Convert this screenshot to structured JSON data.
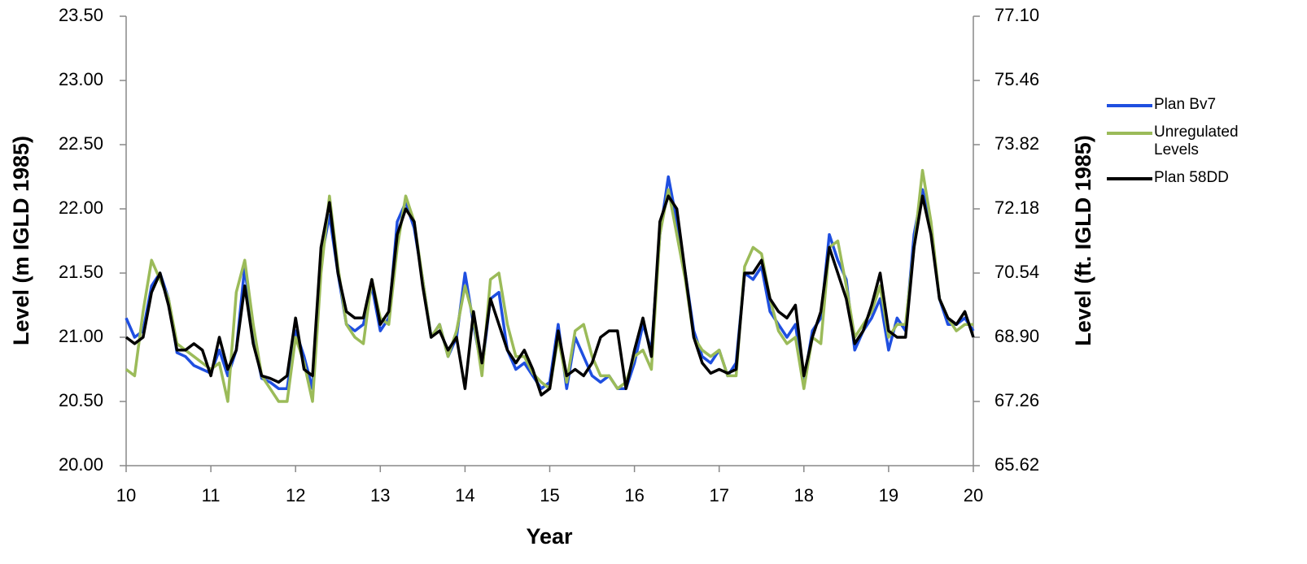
{
  "chart_data": {
    "type": "line",
    "xlabel": "Year",
    "ylabel": "Level (m IGLD 1985)",
    "y2label": "Level (ft. IGLD 1985)",
    "x": [
      10,
      10.1,
      10.2,
      10.3,
      10.4,
      10.5,
      10.6,
      10.7,
      10.8,
      10.9,
      11,
      11.1,
      11.2,
      11.3,
      11.4,
      11.5,
      11.6,
      11.7,
      11.8,
      11.9,
      12,
      12.1,
      12.2,
      12.3,
      12.4,
      12.5,
      12.6,
      12.7,
      12.8,
      12.9,
      13,
      13.1,
      13.2,
      13.3,
      13.4,
      13.5,
      13.6,
      13.7,
      13.8,
      13.9,
      14,
      14.1,
      14.2,
      14.3,
      14.4,
      14.5,
      14.6,
      14.7,
      14.8,
      14.9,
      15,
      15.1,
      15.2,
      15.3,
      15.4,
      15.5,
      15.6,
      15.7,
      15.8,
      15.9,
      16,
      16.1,
      16.2,
      16.3,
      16.4,
      16.5,
      16.6,
      16.7,
      16.8,
      16.9,
      17,
      17.1,
      17.2,
      17.3,
      17.4,
      17.5,
      17.6,
      17.7,
      17.8,
      17.9,
      18,
      18.1,
      18.2,
      18.3,
      18.4,
      18.5,
      18.6,
      18.7,
      18.8,
      18.9,
      19,
      19.1,
      19.2,
      19.3,
      19.4,
      19.5,
      19.6,
      19.7,
      19.8,
      19.9,
      20
    ],
    "series": [
      {
        "name": "Plan Bv7",
        "color": "#1f4fe0",
        "values": [
          21.15,
          21.0,
          21.05,
          21.4,
          21.5,
          21.3,
          20.88,
          20.85,
          20.78,
          20.75,
          20.72,
          20.9,
          20.7,
          20.9,
          21.55,
          21.0,
          20.68,
          20.65,
          20.6,
          20.6,
          21.05,
          20.85,
          20.6,
          21.6,
          21.95,
          21.5,
          21.1,
          21.05,
          21.1,
          21.4,
          21.05,
          21.15,
          21.9,
          22.05,
          21.85,
          21.45,
          21.0,
          21.1,
          20.85,
          21.0,
          21.5,
          21.1,
          20.75,
          21.3,
          21.35,
          20.9,
          20.75,
          20.8,
          20.7,
          20.6,
          20.65,
          21.1,
          20.6,
          21.0,
          20.85,
          20.7,
          20.65,
          20.7,
          20.6,
          20.6,
          20.8,
          21.1,
          20.9,
          21.8,
          22.25,
          21.9,
          21.5,
          21.05,
          20.85,
          20.8,
          20.9,
          20.7,
          20.8,
          21.5,
          21.45,
          21.55,
          21.2,
          21.1,
          21.0,
          21.1,
          20.65,
          21.05,
          21.15,
          21.8,
          21.6,
          21.45,
          20.9,
          21.05,
          21.15,
          21.3,
          20.9,
          21.15,
          21.05,
          21.8,
          22.15,
          21.85,
          21.3,
          21.1,
          21.1,
          21.15,
          21.05
        ]
      },
      {
        "name": "Unregulated Levels",
        "color": "#9bbb59",
        "values": [
          20.75,
          20.7,
          21.2,
          21.6,
          21.45,
          21.3,
          20.95,
          20.9,
          20.85,
          20.8,
          20.75,
          20.8,
          20.5,
          21.35,
          21.6,
          21.1,
          20.7,
          20.6,
          20.5,
          20.5,
          21.0,
          20.8,
          20.5,
          21.5,
          22.1,
          21.55,
          21.1,
          21.0,
          20.95,
          21.45,
          21.15,
          21.1,
          21.7,
          22.1,
          21.9,
          21.45,
          21.0,
          21.1,
          20.85,
          21.05,
          21.4,
          21.15,
          20.7,
          21.45,
          21.5,
          21.1,
          20.85,
          20.85,
          20.72,
          20.65,
          20.6,
          21.0,
          20.65,
          21.05,
          21.1,
          20.85,
          20.7,
          20.7,
          20.6,
          20.65,
          20.85,
          20.9,
          20.75,
          21.8,
          22.15,
          21.8,
          21.45,
          21.0,
          20.9,
          20.85,
          20.9,
          20.7,
          20.7,
          21.55,
          21.7,
          21.65,
          21.3,
          21.05,
          20.95,
          21.0,
          20.6,
          21.0,
          20.95,
          21.7,
          21.75,
          21.4,
          21.0,
          21.1,
          21.2,
          21.4,
          21.0,
          21.1,
          21.1,
          21.7,
          22.3,
          21.9,
          21.3,
          21.15,
          21.05,
          21.1,
          21.1
        ]
      },
      {
        "name": "Plan 58DD",
        "color": "#000000",
        "values": [
          21.0,
          20.95,
          21.0,
          21.35,
          21.5,
          21.25,
          20.9,
          20.9,
          20.95,
          20.9,
          20.7,
          21.0,
          20.75,
          20.9,
          21.4,
          20.95,
          20.7,
          20.68,
          20.65,
          20.7,
          21.15,
          20.75,
          20.7,
          21.7,
          22.05,
          21.5,
          21.2,
          21.15,
          21.15,
          21.45,
          21.1,
          21.2,
          21.8,
          22.0,
          21.9,
          21.4,
          21.0,
          21.05,
          20.9,
          21.0,
          20.6,
          21.2,
          20.8,
          21.3,
          21.1,
          20.9,
          20.8,
          20.9,
          20.75,
          20.55,
          20.6,
          21.05,
          20.7,
          20.75,
          20.7,
          20.8,
          21.0,
          21.05,
          21.05,
          20.6,
          20.9,
          21.15,
          20.85,
          21.9,
          22.1,
          22.0,
          21.5,
          21.0,
          20.8,
          20.72,
          20.75,
          20.72,
          20.75,
          21.5,
          21.5,
          21.6,
          21.3,
          21.2,
          21.15,
          21.25,
          20.7,
          21.0,
          21.2,
          21.7,
          21.5,
          21.3,
          20.95,
          21.05,
          21.25,
          21.5,
          21.05,
          21.0,
          21.0,
          21.7,
          22.1,
          21.8,
          21.3,
          21.15,
          21.1,
          21.2,
          21.0
        ]
      }
    ],
    "xlim": [
      10,
      20
    ],
    "xticks": [
      10,
      11,
      12,
      13,
      14,
      15,
      16,
      17,
      18,
      19,
      20
    ],
    "ylim": [
      20,
      23.5
    ],
    "yticks": [
      {
        "value": 20,
        "label": "20.00"
      },
      {
        "value": 20.5,
        "label": "20.50"
      },
      {
        "value": 21,
        "label": "21.00"
      },
      {
        "value": 21.5,
        "label": "21.50"
      },
      {
        "value": 22,
        "label": "22.00"
      },
      {
        "value": 22.5,
        "label": "22.50"
      },
      {
        "value": 23,
        "label": "23.00"
      },
      {
        "value": 23.5,
        "label": "23.50"
      }
    ],
    "y2lim": [
      65.62,
      77.1
    ],
    "y2ticks": [
      65.62,
      67.26,
      {
        "value": 68.9,
        "label": "68.90"
      },
      70.54,
      72.18,
      73.82,
      75.46,
      {
        "value": 77.1,
        "label": "77.10"
      }
    ],
    "grid": false,
    "legend": "right"
  }
}
